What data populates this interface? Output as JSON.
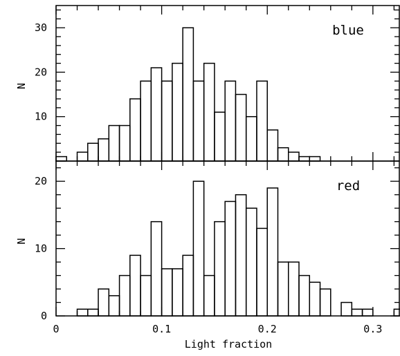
{
  "chart_data": [
    {
      "type": "bar",
      "panel": "top",
      "label": "blue",
      "ylabel": "N",
      "xlim": [
        0,
        0.325
      ],
      "ylim": [
        0,
        35
      ],
      "bin_width": 0.01,
      "bin_start": 0,
      "values": [
        1,
        0,
        2,
        4,
        5,
        8,
        8,
        14,
        18,
        21,
        18,
        22,
        30,
        18,
        22,
        11,
        18,
        15,
        10,
        18,
        7,
        3,
        2,
        1,
        1,
        0,
        0,
        0,
        0,
        0,
        0,
        0,
        0
      ],
      "y_ticks": [
        10,
        20,
        30
      ],
      "y_tick_labels": [
        "10",
        "20",
        "30"
      ],
      "x_ticks": [
        0,
        0.1,
        0.2,
        0.3
      ]
    },
    {
      "type": "bar",
      "panel": "bottom",
      "label": "red",
      "ylabel": "N",
      "xlabel": "Light fraction",
      "xlim": [
        0,
        0.325
      ],
      "ylim": [
        0,
        23
      ],
      "bin_width": 0.01,
      "bin_start": 0,
      "values": [
        0,
        0,
        1,
        1,
        4,
        3,
        6,
        9,
        6,
        14,
        7,
        7,
        9,
        20,
        6,
        14,
        17,
        18,
        16,
        13,
        19,
        8,
        8,
        6,
        5,
        4,
        0,
        2,
        1,
        1,
        0,
        0,
        1
      ],
      "y_ticks": [
        0,
        10,
        20
      ],
      "y_tick_labels": [
        "0",
        "10",
        "20"
      ],
      "x_ticks": [
        0,
        0.1,
        0.2,
        0.3
      ],
      "x_tick_labels": [
        "0",
        "0.1",
        "0.2",
        "0.3"
      ]
    }
  ]
}
